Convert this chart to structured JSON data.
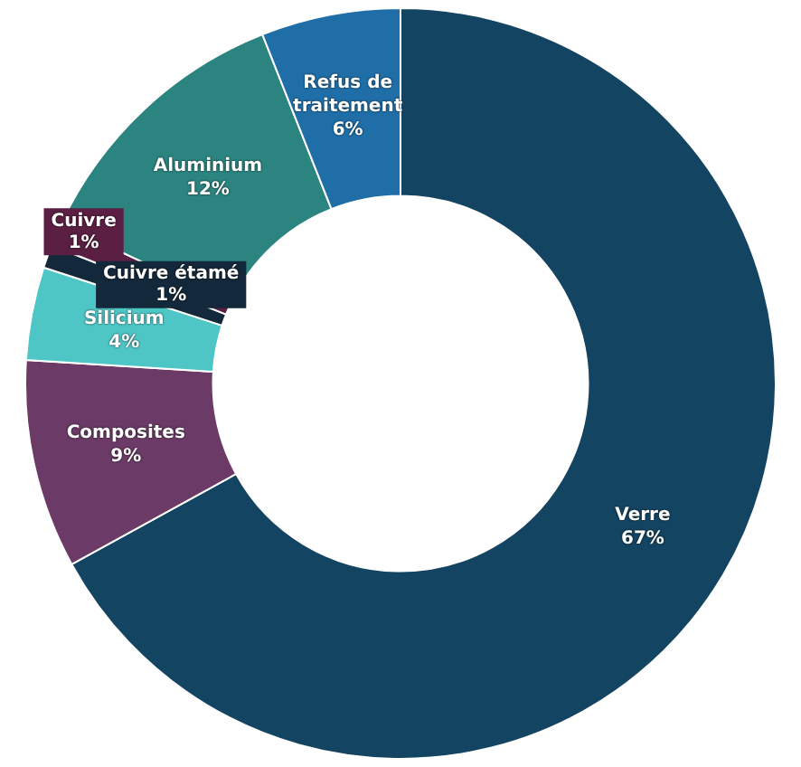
{
  "chart_data": {
    "type": "donut",
    "categories": [
      "Verre",
      "Composites",
      "Silicium",
      "Cuivre étamé",
      "Cuivre",
      "Aluminium",
      "Refus de traitement"
    ],
    "values": [
      67,
      9,
      4,
      1,
      1,
      12,
      6
    ],
    "colors": [
      "#134462",
      "#6b3a66",
      "#4ec6c6",
      "#13283a",
      "#5a1f42",
      "#2b847f",
      "#1f6ea8"
    ],
    "value_labels": [
      "67%",
      "9%",
      "4%",
      "1%",
      "1%",
      "12%",
      "6%"
    ],
    "legend": false
  }
}
